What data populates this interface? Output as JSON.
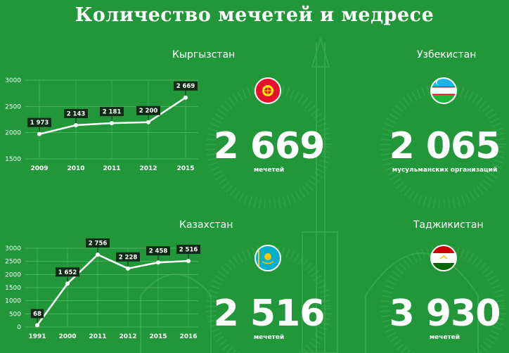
{
  "title": "Количество мечетей и медресе",
  "sections": {
    "kyrgyzstan": {
      "name": "Кыргызстан",
      "value": "2 669",
      "unit": "мечетей"
    },
    "uzbekistan": {
      "name": "Узбекистан",
      "value": "2 065",
      "unit": "мусульманских организаций"
    },
    "kazakhstan": {
      "name": "Казахстан",
      "value": "2 516",
      "unit": "мечетей"
    },
    "tajikistan": {
      "name": "Таджикистан",
      "value": "3 930",
      "unit": "мечетей"
    }
  },
  "colors": {
    "background": "#22973a",
    "line": "#ffffff",
    "label_bg": "#0f2a17",
    "grid": "#4db45f"
  },
  "chart_data": [
    {
      "type": "line",
      "title": "Кыргызстан",
      "x": [
        "2009",
        "2010",
        "2011",
        "2012",
        "2015"
      ],
      "values": [
        1973,
        2143,
        2181,
        2200,
        2669
      ],
      "labels": [
        "1 973",
        "2 143",
        "2 181",
        "2 200",
        "2 669"
      ],
      "yticks": [
        1500,
        2000,
        2500,
        3000
      ],
      "ylim": [
        1500,
        3000
      ],
      "grid": true
    },
    {
      "type": "line",
      "title": "Казахстан",
      "x": [
        "1991",
        "2000",
        "2011",
        "2012",
        "2015",
        "2016"
      ],
      "values": [
        68,
        1652,
        2756,
        2228,
        2458,
        2516
      ],
      "labels": [
        "68",
        "1 652",
        "2 756",
        "2 228",
        "2 458",
        "2 516"
      ],
      "yticks": [
        0,
        500,
        1000,
        1500,
        2000,
        2500,
        3000
      ],
      "ylim": [
        0,
        3000
      ],
      "grid": true
    }
  ]
}
